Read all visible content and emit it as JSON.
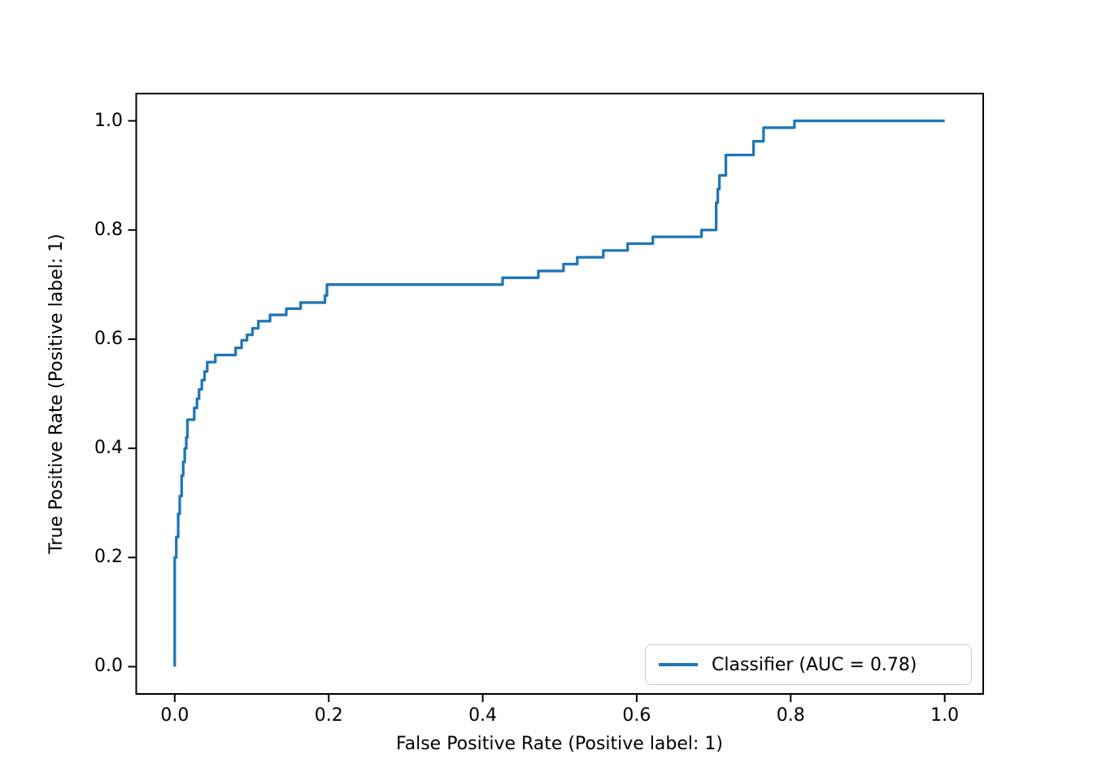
{
  "figure": {
    "background": "#ffffff",
    "spine_color": "#000000",
    "text_color": "#000000"
  },
  "axes": {
    "x_label": "False Positive Rate (Positive label: 1)",
    "y_label": "True Positive Rate (Positive label: 1)",
    "x_tick_labels": [
      "0.0",
      "0.2",
      "0.4",
      "0.6",
      "0.8",
      "1.0"
    ],
    "y_tick_labels": [
      "0.0",
      "0.2",
      "0.4",
      "0.6",
      "0.8",
      "1.0"
    ],
    "x_tick_values": [
      0.0,
      0.2,
      0.4,
      0.6,
      0.8,
      1.0
    ],
    "y_tick_values": [
      0.0,
      0.2,
      0.4,
      0.6,
      0.8,
      1.0
    ]
  },
  "legend": {
    "label": "Classifier (AUC = 0.78)",
    "line_color": "#1f77b4",
    "position": "lower right"
  },
  "chart_data": {
    "type": "line",
    "subtype": "roc_curve",
    "title": "",
    "xlabel": "False Positive Rate (Positive label: 1)",
    "ylabel": "True Positive Rate (Positive label: 1)",
    "xlim": [
      -0.05,
      1.05
    ],
    "ylim": [
      -0.05,
      1.05
    ],
    "grid": false,
    "legend_position": "lower right",
    "series": [
      {
        "name": "Classifier (AUC = 0.78)",
        "auc": 0.78,
        "color": "#1f77b4",
        "line_width": 3.3,
        "step": "post",
        "points": [
          [
            0.0,
            0.0
          ],
          [
            0.0,
            0.2
          ],
          [
            0.002,
            0.2375
          ],
          [
            0.0045,
            0.28
          ],
          [
            0.0065,
            0.3125
          ],
          [
            0.009,
            0.35
          ],
          [
            0.011,
            0.375
          ],
          [
            0.013,
            0.4
          ],
          [
            0.015,
            0.42
          ],
          [
            0.0165,
            0.4525
          ],
          [
            0.0253,
            0.474
          ],
          [
            0.0289,
            0.491
          ],
          [
            0.0316,
            0.508
          ],
          [
            0.0352,
            0.525
          ],
          [
            0.0387,
            0.541
          ],
          [
            0.0422,
            0.558
          ],
          [
            0.0527,
            0.571
          ],
          [
            0.0791,
            0.584
          ],
          [
            0.0869,
            0.598
          ],
          [
            0.0939,
            0.608
          ],
          [
            0.101,
            0.62
          ],
          [
            0.1086,
            0.633
          ],
          [
            0.1238,
            0.6445
          ],
          [
            0.1449,
            0.656
          ],
          [
            0.1635,
            0.667
          ],
          [
            0.1951,
            0.68
          ],
          [
            0.1977,
            0.7
          ],
          [
            0.4258,
            0.7125
          ],
          [
            0.4722,
            0.725
          ],
          [
            0.5049,
            0.7375
          ],
          [
            0.5228,
            0.75
          ],
          [
            0.5566,
            0.7625
          ],
          [
            0.5882,
            0.775
          ],
          [
            0.6209,
            0.7875
          ],
          [
            0.6842,
            0.8
          ],
          [
            0.7032,
            0.85
          ],
          [
            0.7053,
            0.875
          ],
          [
            0.7074,
            0.9
          ],
          [
            0.7158,
            0.9375
          ],
          [
            0.7517,
            0.9625
          ],
          [
            0.7647,
            0.9875
          ],
          [
            0.8048,
            1.0
          ],
          [
            1.0,
            1.0
          ]
        ]
      }
    ]
  }
}
